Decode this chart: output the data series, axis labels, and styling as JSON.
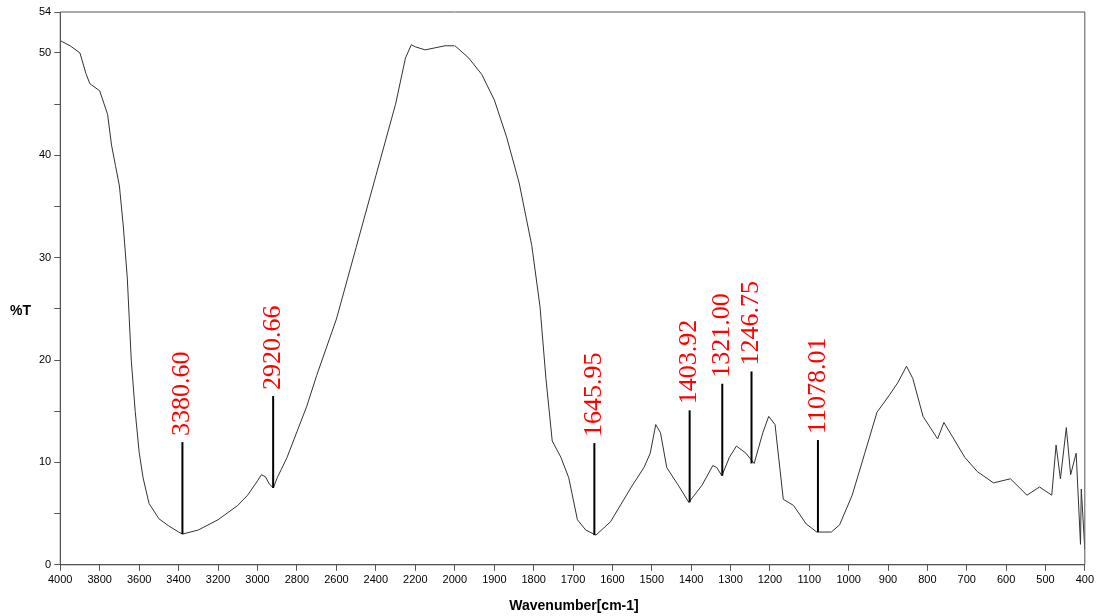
{
  "chart_data": [
    {
      "type": "line",
      "ylabel": "%T",
      "xlim": [
        4000,
        2000
      ],
      "ylim": [
        0,
        54
      ],
      "xticks": [
        4000,
        3800,
        3600,
        3400,
        3200,
        3000,
        2800,
        2600,
        2400,
        2200,
        2000
      ],
      "yticks": [
        0,
        {
          "value": 5,
          "label": null
        },
        10,
        {
          "value": 15,
          "label": null
        },
        20,
        {
          "value": 25,
          "label": null
        },
        30,
        {
          "value": 35,
          "label": null
        },
        40,
        {
          "value": 45,
          "label": null
        },
        50,
        54
      ],
      "grid": false,
      "legend": false,
      "marker": "none",
      "line_style": "solid",
      "series": [
        {
          "color": "#333333",
          "x": [
            4000,
            3950,
            3900,
            3870,
            3850,
            3800,
            3760,
            3740,
            3720,
            3700,
            3680,
            3660,
            3650,
            3640,
            3620,
            3600,
            3580,
            3550,
            3500,
            3450,
            3400,
            3380,
            3300,
            3200,
            3100,
            3050,
            3000,
            2980,
            2960,
            2940,
            2920,
            2900,
            2880,
            2850,
            2800,
            2750,
            2700,
            2600,
            2500,
            2400,
            2300,
            2250,
            2220,
            2200,
            2150,
            2100,
            2050,
            2000
          ],
          "values": [
            51.2,
            50.7,
            50,
            48,
            47,
            46.3,
            44,
            41,
            39,
            37,
            33,
            28,
            24,
            20,
            15,
            11,
            8.5,
            6,
            4.5,
            3.8,
            3.2,
            3,
            3.4,
            4.4,
            5.8,
            6.8,
            8.2,
            8.8,
            8.6,
            7.9,
            7.5,
            8.5,
            9.3,
            10.5,
            13,
            15.5,
            18.5,
            24,
            31,
            38,
            45,
            49.5,
            50.8,
            50.6,
            50.3,
            50.5,
            50.7,
            50.7
          ]
        }
      ],
      "annotations": [
        {
          "text": "3380.60",
          "x": 3380.6,
          "y": 3
        },
        {
          "text": "2920.66",
          "x": 2920.66,
          "y": 7.5
        }
      ]
    },
    {
      "type": "line",
      "xlabel": "Wavenumber[cm-1]",
      "xlim": [
        2000,
        400
      ],
      "ylim": [
        0,
        54
      ],
      "xticks": [
        1900,
        1800,
        1700,
        1600,
        1500,
        1400,
        1300,
        1200,
        1100,
        1000,
        900,
        800,
        700,
        600,
        500,
        400
      ],
      "tick_labels": "x",
      "grid": false,
      "legend": false,
      "marker": "none",
      "line_style": "solid",
      "series": [
        {
          "color": "#333333",
          "x": [
            2000,
            1965,
            1932,
            1900,
            1869,
            1837,
            1805,
            1784,
            1769,
            1753,
            1731,
            1711,
            1689,
            1668,
            1642,
            1605,
            1552,
            1520,
            1504,
            1490,
            1478,
            1462,
            1430,
            1406,
            1372,
            1345,
            1335,
            1322,
            1303,
            1285,
            1261,
            1240,
            1218,
            1203,
            1187,
            1166,
            1140,
            1108,
            1081,
            1044,
            1023,
            991,
            959,
            928,
            896,
            875,
            853,
            837,
            811,
            774,
            758,
            736,
            705,
            673,
            632,
            589,
            547,
            515,
            484,
            473,
            462,
            447,
            436,
            422,
            411,
            409,
            400
          ],
          "values": [
            50.7,
            49.5,
            47.9,
            45.4,
            41.8,
            37.3,
            31.2,
            25.2,
            18.2,
            12.1,
            10.5,
            8.5,
            4.4,
            3.4,
            2.9,
            4.2,
            7.6,
            9.5,
            10.9,
            13.7,
            12.9,
            9.5,
            7.6,
            6.1,
            7.8,
            9.7,
            9.5,
            8.7,
            10.5,
            11.6,
            10.9,
            9.9,
            12.9,
            14.5,
            13.7,
            6.4,
            5.8,
            4,
            3.2,
            3.2,
            3.9,
            6.8,
            10.9,
            14.9,
            16.6,
            17.8,
            19.4,
            18.2,
            14.5,
            12.3,
            13.9,
            12.5,
            10.5,
            9.1,
            8,
            8.4,
            6.8,
            7.6,
            6.8,
            11.7,
            8.4,
            13.4,
            8.8,
            10.9,
            2,
            7.4,
            1.5
          ]
        }
      ],
      "annotations": [
        {
          "text": "1645.95",
          "x": 1645.95,
          "y": 2.9
        },
        {
          "text": "1403.92",
          "x": 1403.92,
          "y": 6.1
        },
        {
          "text": "1321.00",
          "x": 1321,
          "y": 8.7
        },
        {
          "text": "1246.75",
          "x": 1246.75,
          "y": 9.9
        },
        {
          "text": "11078.01",
          "x": 1078,
          "y": 3.2
        }
      ]
    }
  ]
}
